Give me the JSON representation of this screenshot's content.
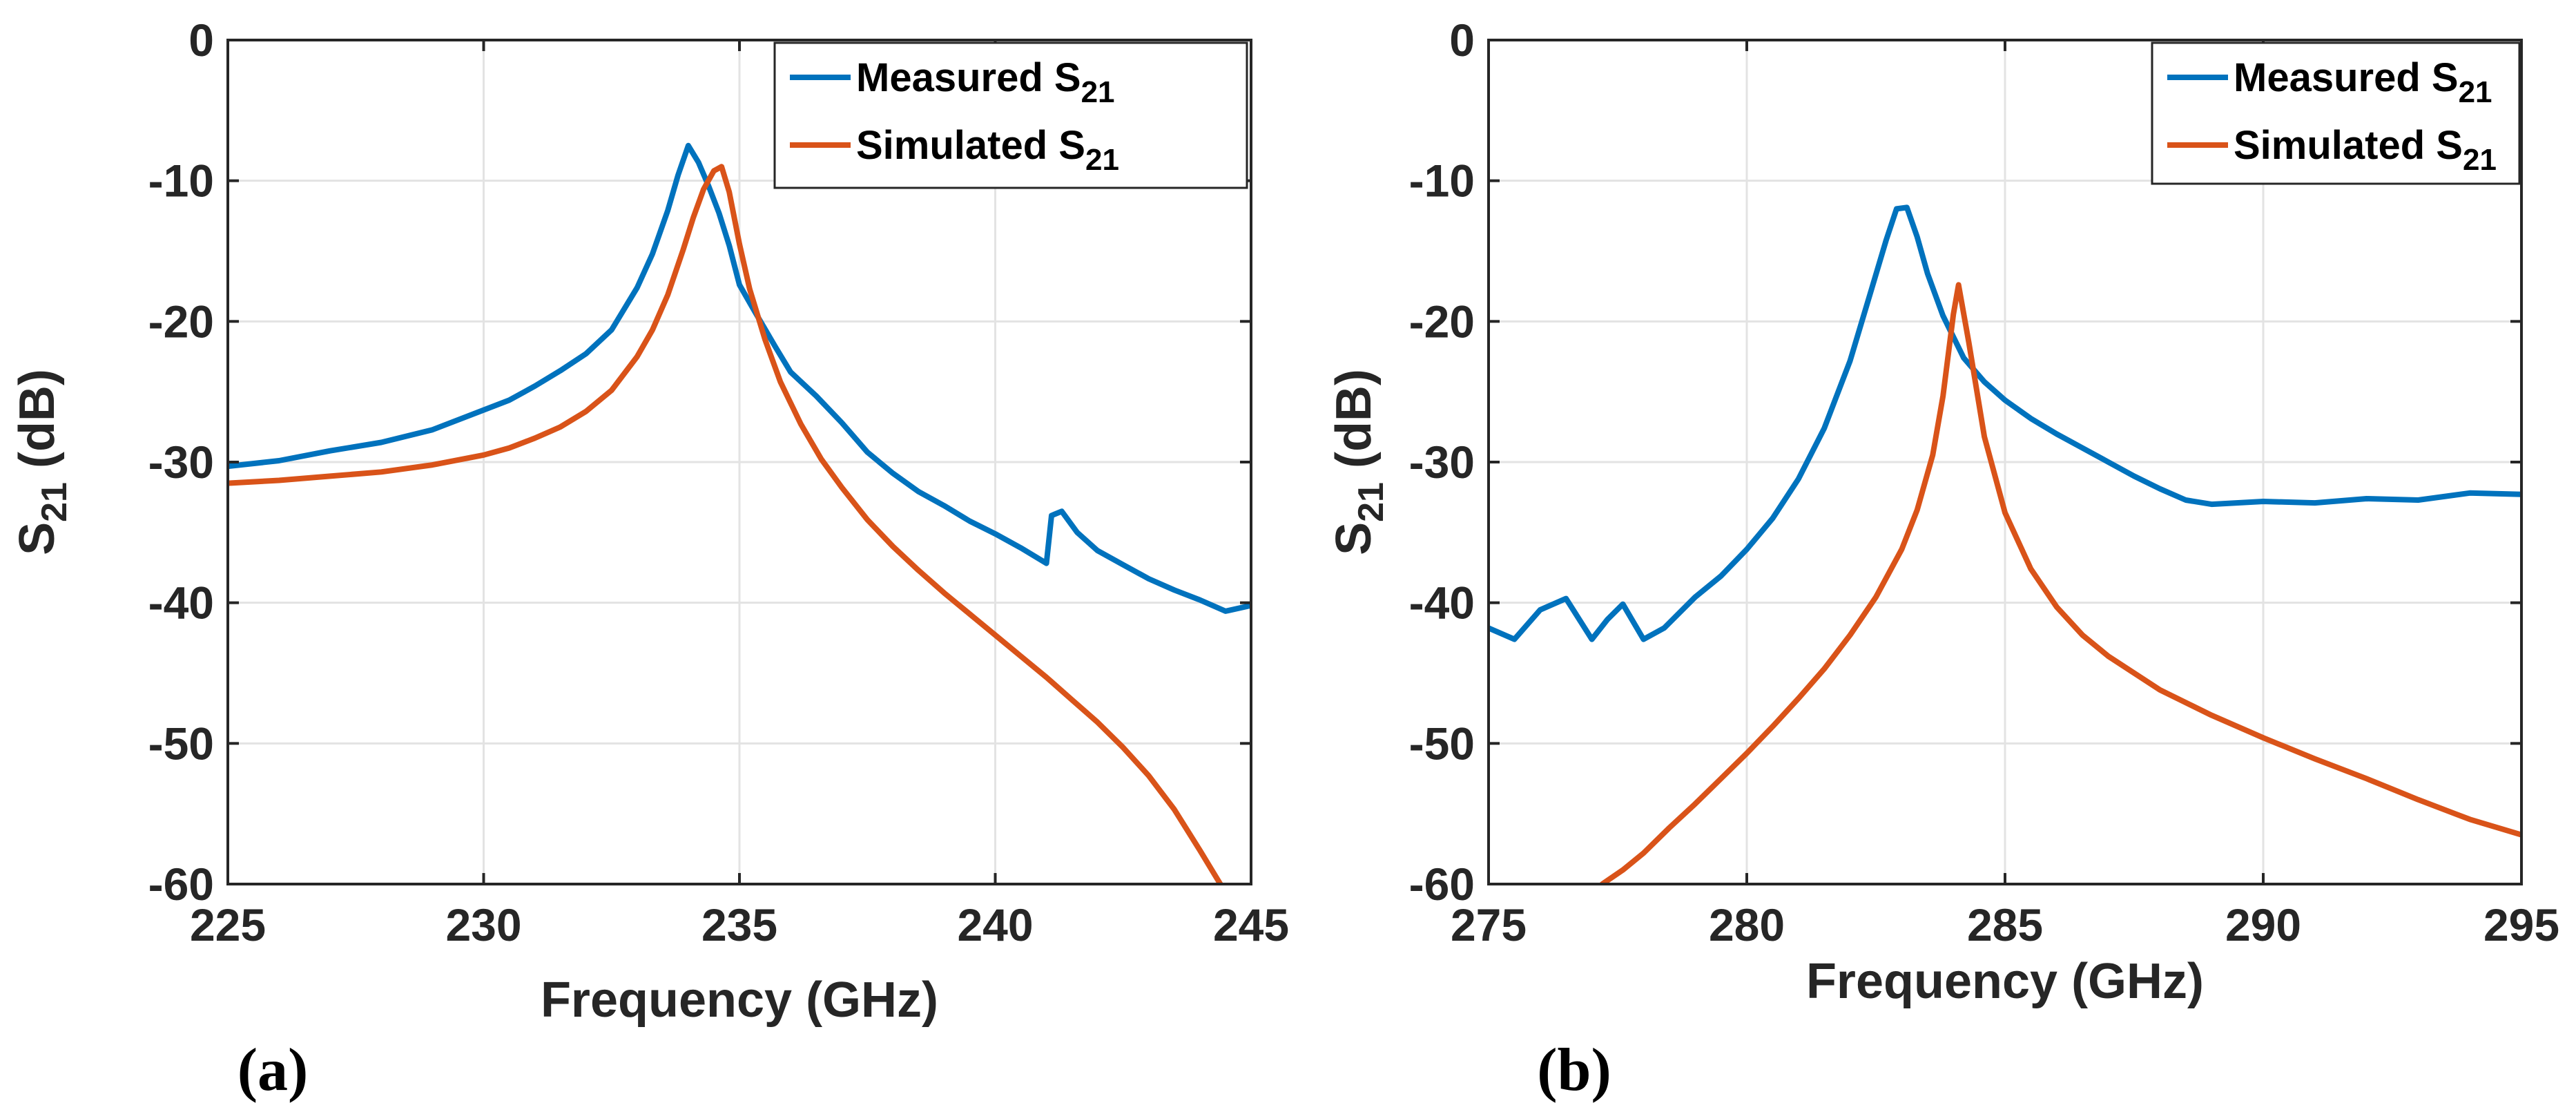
{
  "chart_data": [
    {
      "type": "line",
      "panel_label": "(a)",
      "xlabel": "Frequency (GHz)",
      "ylabel": "S21 (dB)",
      "ylabel_main": "S",
      "ylabel_sub": "21",
      "ylabel_unit": " (dB)",
      "xlim": [
        225,
        245
      ],
      "ylim": [
        -60,
        0
      ],
      "xticks": [
        225,
        230,
        235,
        240,
        245
      ],
      "yticks": [
        -60,
        -50,
        -40,
        -30,
        -20,
        -10,
        0
      ],
      "grid": true,
      "legend_position": "top-right",
      "series": [
        {
          "name": "Measured S21",
          "legend_main": "Measured S",
          "legend_sub": "21",
          "color": "#0072BD",
          "x": [
            225,
            226,
            227,
            228,
            229,
            230,
            230.5,
            231,
            231.5,
            232,
            232.5,
            233,
            233.3,
            233.6,
            233.8,
            234,
            234.2,
            234.4,
            234.6,
            234.8,
            235,
            235.3,
            235.7,
            236,
            236.5,
            237,
            237.5,
            238,
            238.5,
            239,
            239.5,
            240,
            240.5,
            241,
            241.1,
            241.3,
            241.6,
            242,
            242.5,
            243,
            243.5,
            244,
            244.5,
            245
          ],
          "y": [
            -30.3,
            -29.9,
            -29.2,
            -28.6,
            -27.7,
            -26.3,
            -25.6,
            -24.6,
            -23.5,
            -22.3,
            -20.6,
            -17.6,
            -15.2,
            -12.1,
            -9.6,
            -7.5,
            -8.7,
            -10.4,
            -12.3,
            -14.6,
            -17.4,
            -19.3,
            -21.8,
            -23.6,
            -25.3,
            -27.2,
            -29.3,
            -30.8,
            -32.1,
            -33.1,
            -34.2,
            -35.1,
            -36.1,
            -37.2,
            -33.8,
            -33.5,
            -35.0,
            -36.3,
            -37.3,
            -38.3,
            -39.1,
            -39.8,
            -40.6,
            -40.2
          ]
        },
        {
          "name": "Simulated S21",
          "legend_main": "Simulated S",
          "legend_sub": "21",
          "color": "#D95319",
          "x": [
            225,
            226,
            227,
            228,
            229,
            230,
            230.5,
            231,
            231.5,
            232,
            232.5,
            233,
            233.3,
            233.6,
            233.9,
            234.1,
            234.3,
            234.5,
            234.65,
            234.8,
            235,
            235.2,
            235.5,
            235.8,
            236.2,
            236.6,
            237,
            237.5,
            238,
            238.5,
            239,
            239.5,
            240,
            240.5,
            241,
            241.5,
            242,
            242.5,
            243,
            243.5,
            244,
            244.4
          ],
          "y": [
            -31.5,
            -31.3,
            -31.0,
            -30.7,
            -30.2,
            -29.5,
            -29.0,
            -28.3,
            -27.5,
            -26.4,
            -24.9,
            -22.5,
            -20.6,
            -18.1,
            -14.9,
            -12.6,
            -10.6,
            -9.3,
            -9.0,
            -10.8,
            -14.5,
            -17.7,
            -21.3,
            -24.3,
            -27.3,
            -29.8,
            -31.8,
            -34.1,
            -36.0,
            -37.7,
            -39.3,
            -40.8,
            -42.3,
            -43.8,
            -45.3,
            -46.9,
            -48.5,
            -50.3,
            -52.3,
            -54.7,
            -57.6,
            -60.0
          ]
        }
      ]
    },
    {
      "type": "line",
      "panel_label": "(b)",
      "xlabel": "Frequency (GHz)",
      "ylabel": "S21 (dB)",
      "ylabel_main": "S",
      "ylabel_sub": "21",
      "ylabel_unit": " (dB)",
      "xlim": [
        275,
        295
      ],
      "ylim": [
        -60,
        0
      ],
      "xticks": [
        275,
        280,
        285,
        290,
        295
      ],
      "yticks": [
        -60,
        -50,
        -40,
        -30,
        -20,
        -10,
        0
      ],
      "grid": true,
      "legend_position": "top-right",
      "series": [
        {
          "name": "Measured S21",
          "legend_main": "Measured S",
          "legend_sub": "21",
          "color": "#0072BD",
          "x": [
            275,
            275.5,
            276,
            276.5,
            277,
            277.3,
            277.6,
            278,
            278.4,
            279,
            279.5,
            280,
            280.5,
            281,
            281.5,
            282,
            282.4,
            282.7,
            282.9,
            283.1,
            283.3,
            283.5,
            283.8,
            284.2,
            284.6,
            285,
            285.5,
            286,
            286.5,
            287,
            287.5,
            288,
            288.5,
            289,
            290,
            291,
            292,
            293,
            294,
            295
          ],
          "y": [
            -41.8,
            -42.6,
            -40.5,
            -39.7,
            -42.6,
            -41.2,
            -40.1,
            -42.6,
            -41.8,
            -39.6,
            -38.1,
            -36.2,
            -34.0,
            -31.2,
            -27.6,
            -22.8,
            -17.9,
            -14.2,
            -12.0,
            -11.9,
            -14.0,
            -16.6,
            -19.6,
            -22.6,
            -24.3,
            -25.6,
            -26.9,
            -28.0,
            -29.0,
            -30.0,
            -31.0,
            -31.9,
            -32.7,
            -33.0,
            -32.8,
            -32.9,
            -32.6,
            -32.7,
            -32.2,
            -32.3
          ]
        },
        {
          "name": "Simulated S21",
          "legend_main": "Simulated S",
          "legend_sub": "21",
          "color": "#D95319",
          "x": [
            277.2,
            277.6,
            278,
            278.5,
            279,
            279.5,
            280,
            280.5,
            281,
            281.5,
            282,
            282.5,
            283,
            283.3,
            283.6,
            283.8,
            284,
            284.1,
            284.3,
            284.6,
            285,
            285.5,
            286,
            286.5,
            287,
            288,
            289,
            290,
            291,
            292,
            293,
            294,
            295
          ],
          "y": [
            -60.0,
            -59.0,
            -57.8,
            -56.0,
            -54.3,
            -52.5,
            -50.7,
            -48.8,
            -46.8,
            -44.7,
            -42.3,
            -39.6,
            -36.2,
            -33.4,
            -29.5,
            -25.3,
            -19.5,
            -17.4,
            -21.5,
            -28.2,
            -33.6,
            -37.6,
            -40.3,
            -42.3,
            -43.8,
            -46.2,
            -48.0,
            -49.6,
            -51.1,
            -52.5,
            -54.0,
            -55.4,
            -56.5
          ]
        }
      ]
    }
  ]
}
